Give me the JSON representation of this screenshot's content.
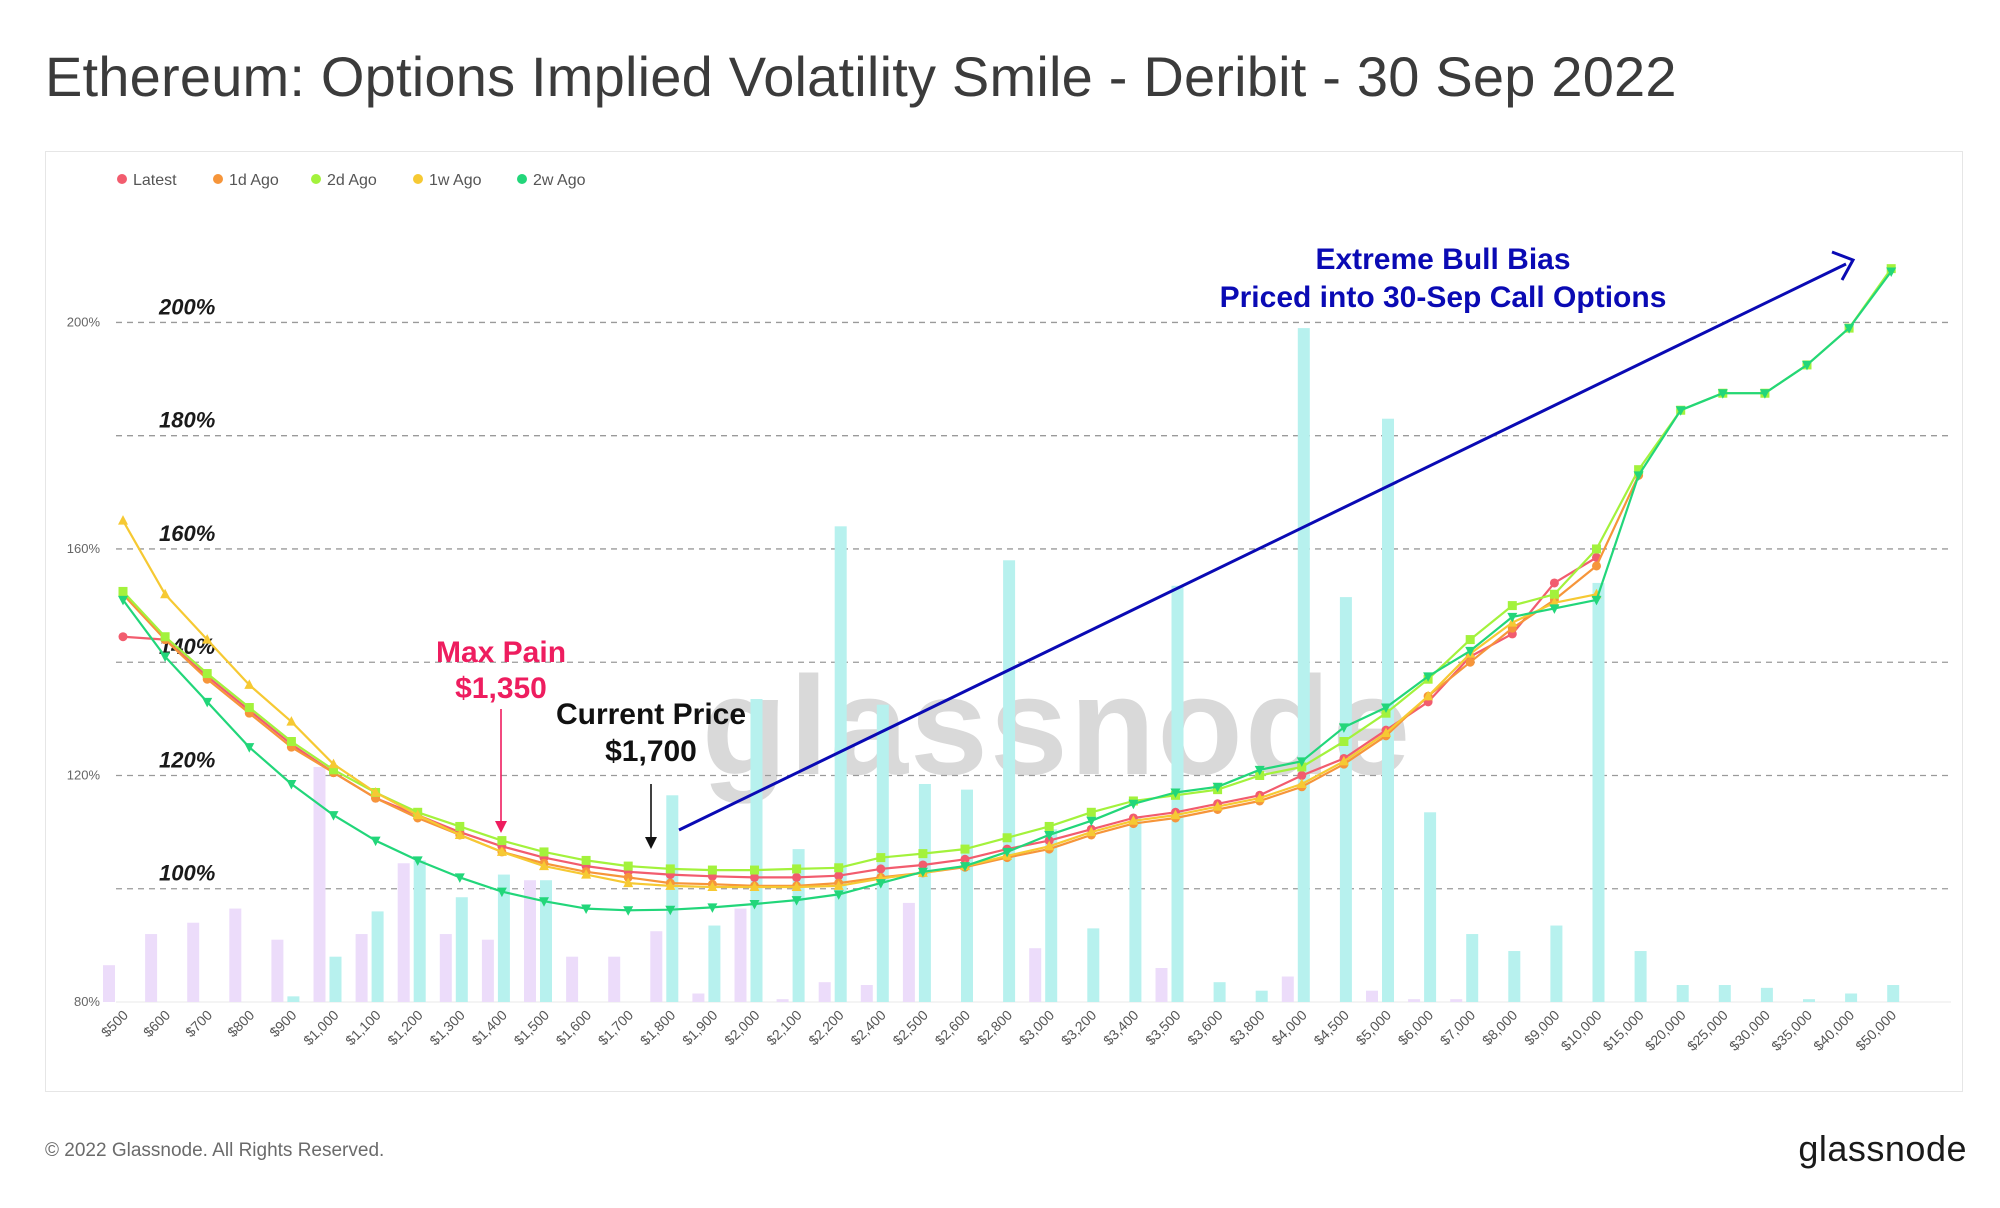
{
  "title": "Ethereum: Options Implied Volatility Smile - Deribit - 30 Sep 2022",
  "footer": {
    "copyright": "© 2022 Glassnode. All Rights Reserved.",
    "logo": "glassnode"
  },
  "chart_data": {
    "type": "line",
    "title": "Ethereum: Options Implied Volatility Smile - Deribit - 30 Sep 2022",
    "watermark": "glassnode",
    "ylim": [
      80,
      210
    ],
    "yticks": [
      80,
      120,
      160,
      200
    ],
    "ytick_labels": [
      "80%",
      "120%",
      "160%",
      "200%"
    ],
    "categories": [
      "$500",
      "$600",
      "$700",
      "$800",
      "$900",
      "$1,000",
      "$1,100",
      "$1,200",
      "$1,300",
      "$1,400",
      "$1,500",
      "$1,600",
      "$1,700",
      "$1,800",
      "$1,900",
      "$2,000",
      "$2,100",
      "$2,200",
      "$2,400",
      "$2,500",
      "$2,600",
      "$2,800",
      "$3,000",
      "$3,200",
      "$3,400",
      "$3,500",
      "$3,600",
      "$3,800",
      "$4,000",
      "$4,500",
      "$5,000",
      "$6,000",
      "$7,000",
      "$8,000",
      "$9,000",
      "$10,000",
      "$15,000",
      "$20,000",
      "$25,000",
      "$30,000",
      "$35,000",
      "$40,000",
      "$50,000"
    ],
    "guide_lines": [
      {
        "value": 200,
        "label": "200%"
      },
      {
        "value": 180,
        "label": "180%"
      },
      {
        "value": 160,
        "label": "160%"
      },
      {
        "value": 140,
        "label": "140%"
      },
      {
        "value": 120,
        "label": "120%"
      },
      {
        "value": 100,
        "label": "100%"
      }
    ],
    "series": [
      {
        "name": "Latest",
        "color": "#f25c6e",
        "marker": "circle",
        "values": [
          144.5,
          144,
          137.5,
          131.5,
          125.5,
          120.5,
          116,
          113,
          110,
          107.5,
          105.5,
          104,
          103,
          102.5,
          102.2,
          102,
          102,
          102.3,
          103.5,
          104.2,
          105.2,
          107,
          108.5,
          110.5,
          112.5,
          113.5,
          115,
          116.5,
          120,
          123,
          128,
          133,
          141,
          145,
          154,
          158.5,
          null,
          null,
          null,
          null,
          null,
          null,
          null
        ]
      },
      {
        "name": "1d Ago",
        "color": "#f6953a",
        "marker": "circle",
        "values": [
          152,
          144,
          137,
          131,
          125,
          120.5,
          116,
          112.5,
          109.5,
          106.5,
          104.5,
          103,
          102,
          101,
          100.8,
          100.5,
          100.5,
          101,
          102,
          102.8,
          103.8,
          105.5,
          107,
          109.5,
          111.5,
          112.5,
          114,
          115.5,
          118,
          122,
          127,
          134,
          140,
          146,
          151,
          157,
          173,
          null,
          null,
          null,
          null,
          null,
          null
        ]
      },
      {
        "name": "2d Ago",
        "color": "#a3f23c",
        "marker": "square",
        "values": [
          152.5,
          144.5,
          138,
          132,
          126,
          121,
          117,
          113.5,
          111,
          108.5,
          106.5,
          105,
          104,
          103.5,
          103.3,
          103.3,
          103.5,
          103.7,
          105.5,
          106.2,
          107,
          109,
          111,
          113.5,
          115.5,
          116.5,
          117.5,
          120,
          121.5,
          126,
          131,
          137,
          144,
          150,
          152,
          160,
          174,
          184.5,
          187.5,
          187.5,
          192.5,
          199,
          209.5
        ]
      },
      {
        "name": "1w Ago",
        "color": "#f6c933",
        "marker": "triangle-up",
        "values": [
          165,
          152,
          144,
          136,
          129.5,
          122,
          117,
          113,
          109.5,
          106.5,
          104,
          102.5,
          101,
          100.5,
          100.3,
          100.3,
          100.3,
          100.5,
          101.8,
          102.8,
          104,
          105.8,
          107.5,
          110,
          112,
          113,
          114.5,
          116,
          118.5,
          122.5,
          127.5,
          134,
          141.5,
          147,
          150.5,
          152,
          null,
          null,
          null,
          null,
          null,
          null,
          null
        ]
      },
      {
        "name": "2w Ago",
        "color": "#22d67a",
        "marker": "triangle-down",
        "values": [
          151,
          141,
          133,
          125,
          118.5,
          113,
          108.5,
          105,
          102,
          99.5,
          97.8,
          96.5,
          96.2,
          96.3,
          96.7,
          97.3,
          98,
          99,
          101,
          103,
          104,
          106.5,
          109.5,
          112,
          115,
          117,
          118,
          121,
          122.5,
          128.5,
          132,
          137.5,
          142,
          148,
          149.5,
          151,
          173,
          184.5,
          187.5,
          187.5,
          192.5,
          199,
          209
        ]
      }
    ],
    "open_interest_bars": {
      "calls": [
        null,
        null,
        null,
        null,
        81,
        88,
        96,
        105,
        98.5,
        102.5,
        101.5,
        null,
        null,
        116.5,
        93.5,
        133.5,
        107,
        164,
        132.5,
        118.5,
        117.5,
        158,
        110.5,
        93,
        112.5,
        153.5,
        83.5,
        82,
        199,
        151.5,
        183,
        113.5,
        92,
        89,
        93.5,
        154,
        89,
        83,
        83,
        82.5,
        80.5,
        81.5,
        83
      ],
      "puts": [
        86.5,
        92,
        94,
        96.5,
        91,
        121.5,
        92,
        104.5,
        92,
        91,
        101.5,
        88,
        88,
        92.5,
        81.5,
        96.5,
        80.5,
        83.5,
        83,
        97.5,
        null,
        null,
        89.5,
        null,
        null,
        86,
        null,
        null,
        84.5,
        null,
        82,
        80.5,
        80.5,
        null,
        null,
        null,
        null,
        null,
        null,
        null,
        null,
        null,
        null
      ],
      "call_color": "#b7f1ee",
      "put_color": "#ecdcfa"
    },
    "annotations": [
      {
        "id": "max-pain",
        "lines": [
          "Max Pain",
          "$1,350"
        ],
        "color": "#ee1d5f"
      },
      {
        "id": "current-price",
        "lines": [
          "Current Price",
          "$1,700"
        ],
        "color": "#111111"
      },
      {
        "id": "bull-bias",
        "lines": [
          "Extreme Bull Bias",
          "Priced into 30-Sep Call Options"
        ],
        "color": "#0a0ab4"
      }
    ],
    "legend": {
      "position": "top-left"
    }
  }
}
